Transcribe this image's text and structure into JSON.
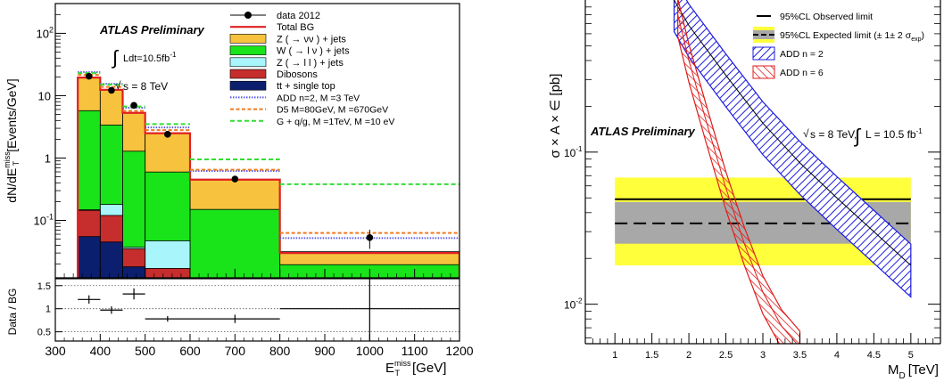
{
  "chart_data": [
    {
      "type": "bar",
      "label": "ATLAS Preliminary",
      "lumi": "Ldt=10.5fb",
      "lumi_sup": "-1",
      "energy": "s = 8 TeV",
      "ylabel": "dN/dE",
      "ylabel_sup": "miss",
      "ylabel_sub": "T",
      "ylabel_unit": "[Events/GeV]",
      "xlabel": "E",
      "xlabel_sup": "miss",
      "xlabel_sub": "T",
      "xlabel_unit": "[GeV]",
      "ratio_ylabel": "Data / BG",
      "xlim": [
        300,
        1200
      ],
      "ylim": [
        0.012,
        300
      ],
      "ylog": true,
      "x_ticks": [
        "300",
        "400",
        "500",
        "600",
        "700",
        "800",
        "900",
        "1000",
        "1100",
        "1200"
      ],
      "y_ticks": [
        {
          "value": 100,
          "label": "10",
          "sup": "2"
        },
        {
          "value": 10,
          "label": "10",
          "sup": ""
        },
        {
          "value": 1,
          "label": "1",
          "sup": ""
        },
        {
          "value": 0.1,
          "label": "10",
          "sup": "-1"
        }
      ],
      "ratio_ylim": [
        0.3,
        1.65
      ],
      "ratio_ticks": [
        "1.5",
        "1",
        "0.5"
      ],
      "bin_edges": [
        350,
        400,
        450,
        500,
        600,
        800,
        1200
      ],
      "stack": [
        {
          "name": "Top",
          "label": "tt + single top",
          "color": "#0b1f6e",
          "values": [
            0.055,
            0.045,
            0.018,
            0.009,
            0.004,
            0.002
          ]
        },
        {
          "name": "Dibosons",
          "label": "Dibosons",
          "color": "#c62d2d",
          "values": [
            0.09,
            0.075,
            0.017,
            0.008,
            0.004,
            0.002
          ]
        },
        {
          "name": "Zll",
          "label": "Z ( → l l ) + jets",
          "color": "#a8f6fb",
          "values": [
            0.003,
            0.06,
            0.002,
            0.03,
            0.002,
            0.001
          ]
        },
        {
          "name": "Wlnu",
          "label": "W ( → l ν ) + jets",
          "color": "#19e319",
          "values": [
            5.6,
            3.2,
            1.25,
            0.55,
            0.14,
            0.0145
          ]
        },
        {
          "name": "Znunu",
          "label": "Z ( → νν ) + jets",
          "color": "#f7c33e",
          "values": [
            13.8,
            9.0,
            4.0,
            1.9,
            0.3,
            0.012
          ]
        }
      ],
      "total_bg": {
        "label": "Total BG",
        "color": "#e02020",
        "values": [
          19.5,
          12.4,
          5.3,
          2.5,
          0.45,
          0.03
        ]
      },
      "data": {
        "label": "data 2012",
        "x": [
          375,
          425,
          475,
          550,
          700,
          1000
        ],
        "values": [
          20.5,
          12.2,
          7.0,
          2.4,
          0.46,
          0.053
        ],
        "err": [
          0.9,
          0.7,
          0.5,
          0.15,
          0.03,
          0.018
        ]
      },
      "signals": [
        {
          "label": "ADD n=2, M =3 TeV",
          "sub": "D",
          "color": "#5a5ae8",
          "values": [
            24,
            15.5,
            6.4,
            3.1,
            0.62,
            0.052
          ]
        },
        {
          "label": "D5 M=80GeV, M =670GeV",
          "sub": "*",
          "color": "#f07a20",
          "values": [
            21.5,
            13.8,
            5.7,
            2.8,
            0.65,
            0.063
          ]
        },
        {
          "label": "G + q/g, M  =1TeV, M =10 eV",
          "sub": "q̃,g̃",
          "color": "#33dd33",
          "values": [
            23,
            15.0,
            6.7,
            3.5,
            0.95,
            0.38
          ]
        }
      ],
      "ratio": {
        "x": [
          375,
          425,
          475,
          550,
          700,
          1000
        ],
        "values": [
          1.2,
          0.97,
          1.32,
          0.78,
          0.78,
          1.0
        ],
        "x_err": [
          25,
          25,
          25,
          50,
          100,
          200
        ],
        "y_err": [
          0.09,
          0.08,
          0.12,
          0.06,
          0.09,
          0.75
        ]
      }
    },
    {
      "type": "line",
      "label": "ATLAS Preliminary",
      "annotation": "s = 8 TeV, ",
      "annotation2": "L = 10.5 fb",
      "annotation2_sup": "-1",
      "ylabel": "σ × A × ∈ [pb]",
      "xlabel": "M",
      "xlabel_sub": "D",
      "xlabel_unit": "[TeV]",
      "xlim": [
        0.6,
        5.4
      ],
      "ylim": [
        0.0055,
        1.0
      ],
      "ylog": true,
      "x_ticks": [
        "1",
        "1.5",
        "2",
        "2.5",
        "3",
        "3.5",
        "4",
        "4.5",
        "5"
      ],
      "y_ticks": [
        {
          "value": 0.1,
          "label": "10",
          "sup": "-1"
        },
        {
          "value": 0.01,
          "label": "10",
          "sup": "-2"
        }
      ],
      "observed_limit": {
        "label": "95%CL Observed limit",
        "x": [
          1,
          5
        ],
        "values": [
          0.049,
          0.049
        ]
      },
      "expected_limit": {
        "label": "95%CL Expected limit (± 1± 2 σ",
        "label_sub": "exp",
        "x": [
          1,
          5
        ],
        "values": [
          0.034,
          0.034
        ],
        "band1": [
          0.025,
          0.047
        ],
        "band2": [
          0.018,
          0.068
        ]
      },
      "curves": [
        {
          "label": "ADD n = 2",
          "color": "#1c1ce0",
          "x": [
            1.8,
            2.0,
            2.5,
            3.0,
            3.5,
            4.0,
            4.5,
            5.0
          ],
          "values": [
            1.0,
            0.68,
            0.32,
            0.155,
            0.085,
            0.05,
            0.03,
            0.018
          ],
          "rel_band": 0.38
        },
        {
          "label": "ADD n = 6",
          "color": "#e01c1c",
          "x": [
            1.85,
            2.0,
            2.25,
            2.5,
            2.75,
            3.0,
            3.25,
            3.5
          ],
          "values": [
            0.8,
            0.4,
            0.15,
            0.058,
            0.025,
            0.012,
            0.0072,
            0.0052
          ],
          "rel_band": 0.28
        }
      ]
    }
  ]
}
